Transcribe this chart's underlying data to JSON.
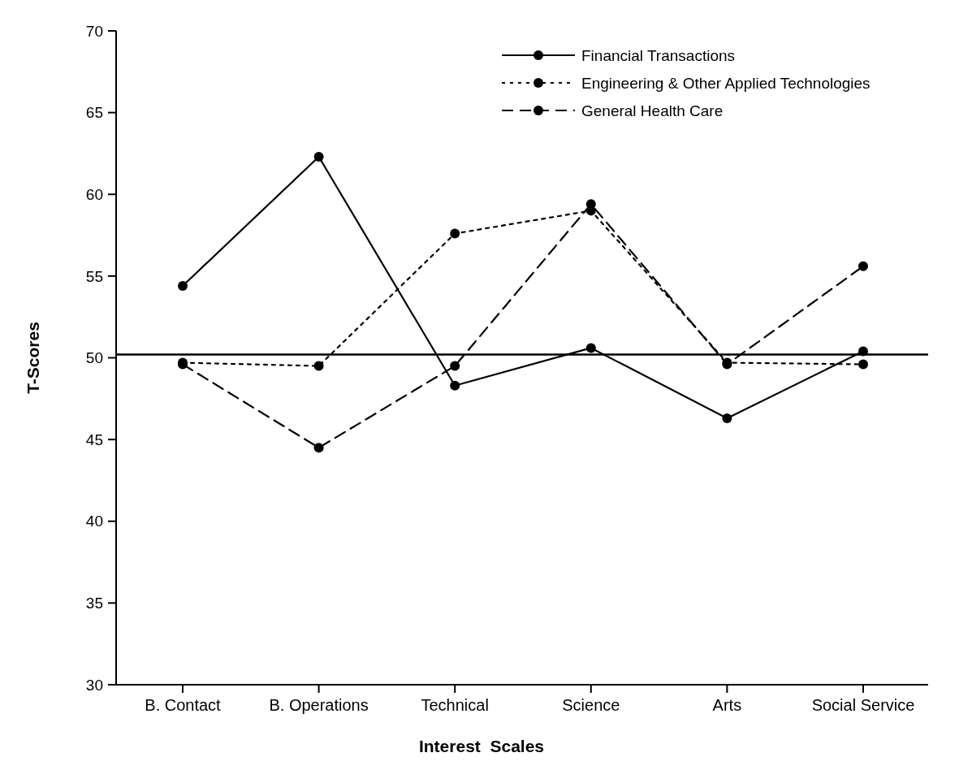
{
  "chart_data": {
    "type": "line",
    "xlabel": "Interest  Scales",
    "ylabel": "T-Scores",
    "categories": [
      "B. Contact",
      "B. Operations",
      "Technical",
      "Science",
      "Arts",
      "Social Service"
    ],
    "series": [
      {
        "name": "Financial Transactions",
        "color": "#000000",
        "line_style": "solid",
        "values": [
          54.4,
          62.3,
          48.3,
          50.6,
          46.3,
          50.4
        ]
      },
      {
        "name": "Engineering & Other Applied Technologies",
        "color": "#000000",
        "line_style": "dotted",
        "values": [
          49.7,
          49.5,
          57.6,
          59.0,
          49.7,
          49.6
        ]
      },
      {
        "name": "General Health Care",
        "color": "#000000",
        "line_style": "dashed",
        "values": [
          49.6,
          44.5,
          49.5,
          59.4,
          49.6,
          55.6
        ]
      }
    ],
    "ylim": [
      30,
      70
    ],
    "yticks": [
      30,
      35,
      40,
      45,
      50,
      55,
      60,
      65,
      70
    ],
    "ref_lines": [
      {
        "axis": "y",
        "value": 50.2,
        "color": "#000000"
      }
    ],
    "marker": "circle",
    "legend": "top right",
    "grid": false
  }
}
